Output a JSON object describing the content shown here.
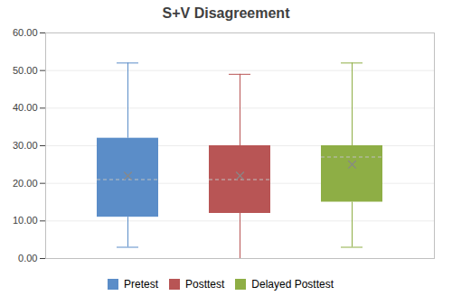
{
  "chart_data": {
    "type": "box",
    "title": "S+V Disagreement",
    "series": [
      {
        "name": "Pretest",
        "color": "#5B8DC8",
        "q1": 11,
        "median": 21,
        "q3": 32,
        "whisker_low": 3,
        "whisker_high": 52,
        "mean": 22
      },
      {
        "name": "Posttest",
        "color": "#B85555",
        "q1": 12,
        "median": 21,
        "q3": 30,
        "whisker_low": 0,
        "whisker_high": 49,
        "mean": 22
      },
      {
        "name": "Delayed Posttest",
        "color": "#8EAE45",
        "q1": 15,
        "median": 27,
        "q3": 30,
        "whisker_low": 3,
        "whisker_high": 52,
        "mean": 25
      }
    ],
    "ylim": [
      0,
      60
    ],
    "yticks": [
      {
        "value": 0,
        "label": "0.00"
      },
      {
        "value": 10,
        "label": "10.00"
      },
      {
        "value": 20,
        "label": "20.00"
      },
      {
        "value": 30,
        "label": "30.00"
      },
      {
        "value": 40,
        "label": "40.00"
      },
      {
        "value": 50,
        "label": "50.00"
      },
      {
        "value": 60,
        "label": "60.00"
      }
    ],
    "grid": true,
    "legend": "bottom",
    "tick_labels": "y"
  }
}
